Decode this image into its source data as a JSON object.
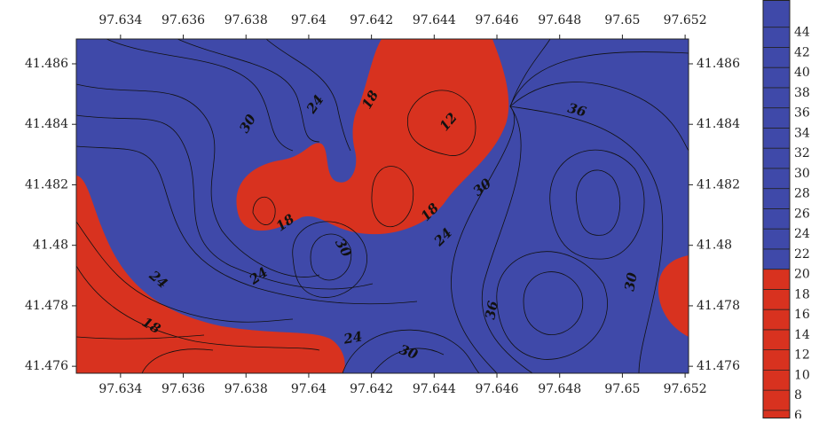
{
  "chart_data": {
    "type": "contour",
    "xlim": [
      97.63259,
      97.65211
    ],
    "xticks": [
      97.634,
      97.636,
      97.638,
      97.64,
      97.642,
      97.644,
      97.646,
      97.648,
      97.65,
      97.652
    ],
    "ylim": [
      41.47577,
      41.48682
    ],
    "yticks": [
      41.476,
      41.478,
      41.48,
      41.482,
      41.484,
      41.486
    ],
    "clim": [
      5.2,
      46.7
    ],
    "cticks": [
      6,
      8,
      10,
      12,
      14,
      16,
      18,
      20,
      22,
      24,
      26,
      28,
      30,
      32,
      34,
      36,
      38,
      40,
      42,
      44
    ],
    "low_color": "#d8321f",
    "high_color": "#3f49a9",
    "threshold": 20,
    "contour_labels": [
      30,
      24,
      18,
      12,
      36,
      30,
      18,
      24,
      30,
      24,
      24,
      18,
      24,
      30,
      36,
      30,
      18
    ]
  }
}
